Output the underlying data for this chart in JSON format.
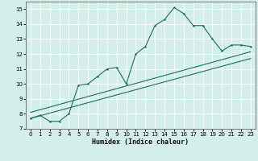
{
  "title": "",
  "xlabel": "Humidex (Indice chaleur)",
  "bg_color": "#d4eeea",
  "grid_color": "#ffffff",
  "line_color": "#1a6e62",
  "xlim": [
    -0.5,
    23.5
  ],
  "ylim": [
    7,
    15.5
  ],
  "xticks": [
    0,
    1,
    2,
    3,
    4,
    5,
    6,
    7,
    8,
    9,
    10,
    11,
    12,
    13,
    14,
    15,
    16,
    17,
    18,
    19,
    20,
    21,
    22,
    23
  ],
  "yticks": [
    7,
    8,
    9,
    10,
    11,
    12,
    13,
    14,
    15
  ],
  "line1_x": [
    0,
    1,
    2,
    3,
    4,
    5,
    6,
    7,
    8,
    9,
    10,
    11,
    12,
    13,
    14,
    15,
    16,
    17,
    18,
    19,
    20,
    21,
    22,
    23
  ],
  "line1_y": [
    7.7,
    7.9,
    7.5,
    7.5,
    8.0,
    9.9,
    10.0,
    10.5,
    11.0,
    11.1,
    10.0,
    12.0,
    12.5,
    13.9,
    14.3,
    15.1,
    14.7,
    13.9,
    13.9,
    13.0,
    12.2,
    12.6,
    12.6,
    12.5
  ],
  "line2_x": [
    0,
    23
  ],
  "line2_y": [
    7.7,
    11.7
  ],
  "line3_x": [
    0,
    23
  ],
  "line3_y": [
    8.1,
    12.15
  ]
}
